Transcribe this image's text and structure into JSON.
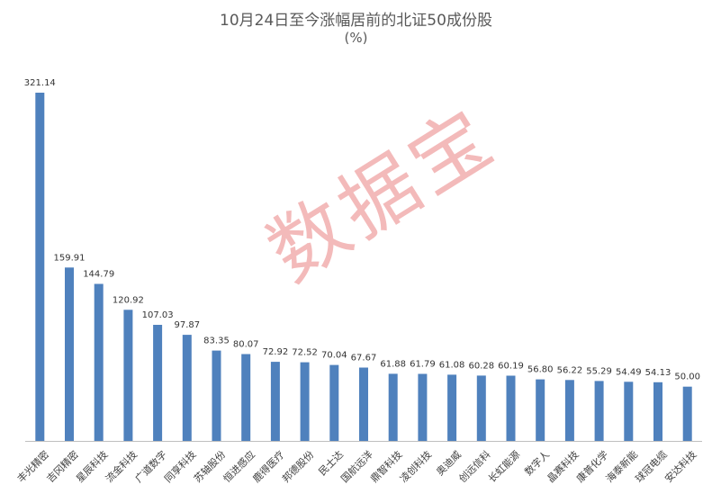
{
  "chart_data": {
    "type": "bar",
    "title": "10月24日至今涨幅居前的北证50成份股",
    "subtitle": "(%)",
    "categories": [
      "丰光精密",
      "吉冈精密",
      "星辰科技",
      "流金科技",
      "广道数字",
      "同享科技",
      "苏轴股份",
      "恒进感应",
      "鹿得医疗",
      "邦德股份",
      "民士达",
      "国航远洋",
      "鼎智科技",
      "凌创科技",
      "奥迪威",
      "创远信科",
      "长虹能源",
      "数字人",
      "晶赛科技",
      "康普化学",
      "海泰新能",
      "球冠电缆",
      "安达科技"
    ],
    "values": [
      321.14,
      159.91,
      144.79,
      120.92,
      107.03,
      97.87,
      83.35,
      80.07,
      72.92,
      72.52,
      70.04,
      67.67,
      61.88,
      61.79,
      61.08,
      60.28,
      60.19,
      56.8,
      56.22,
      55.29,
      54.49,
      54.13,
      50.0
    ],
    "value_labels": [
      "321.14",
      "159.91",
      "144.79",
      "120.92",
      "107.03",
      "97.87",
      "83.35",
      "80.07",
      "72.92",
      "72.52",
      "70.04",
      "67.67",
      "61.88",
      "61.79",
      "61.08",
      "60.28",
      "60.19",
      "56.80",
      "56.22",
      "55.29",
      "54.49",
      "54.13",
      "50.00"
    ],
    "ylim": [
      0,
      321.14
    ],
    "bar_color": "#4f81bd",
    "grid": false,
    "legend": "none"
  },
  "watermark": "数据宝"
}
